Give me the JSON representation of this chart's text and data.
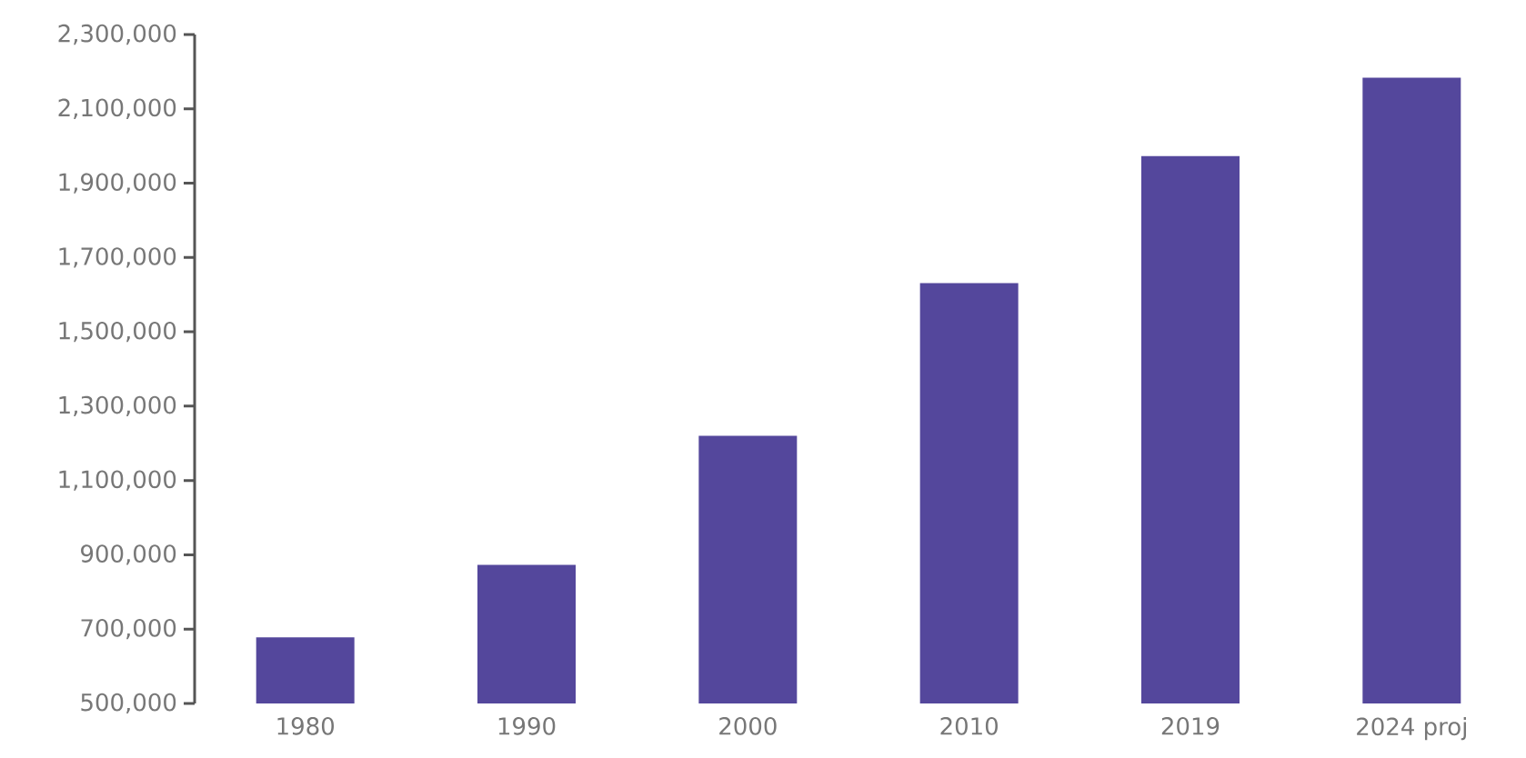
{
  "chart_data": {
    "type": "bar",
    "categories": [
      "1980",
      "1990",
      "2000",
      "2010",
      "2019",
      "2024 proj"
    ],
    "values": [
      678000,
      873000,
      1220000,
      1631000,
      1973000,
      2184000
    ],
    "color": "#54479c",
    "ylim": [
      500000,
      2300000
    ],
    "yticks": [
      {
        "value": 500000,
        "label": "500,000"
      },
      {
        "value": 700000,
        "label": "700,000"
      },
      {
        "value": 900000,
        "label": "900,000"
      },
      {
        "value": 1100000,
        "label": "1,100,000"
      },
      {
        "value": 1300000,
        "label": "1,300,000"
      },
      {
        "value": 1500000,
        "label": "1,500,000"
      },
      {
        "value": 1700000,
        "label": "1,700,000"
      },
      {
        "value": 1900000,
        "label": "1,900,000"
      },
      {
        "value": 2100000,
        "label": "2,100,000"
      },
      {
        "value": 2300000,
        "label": "2,300,000"
      }
    ],
    "grid": false
  }
}
